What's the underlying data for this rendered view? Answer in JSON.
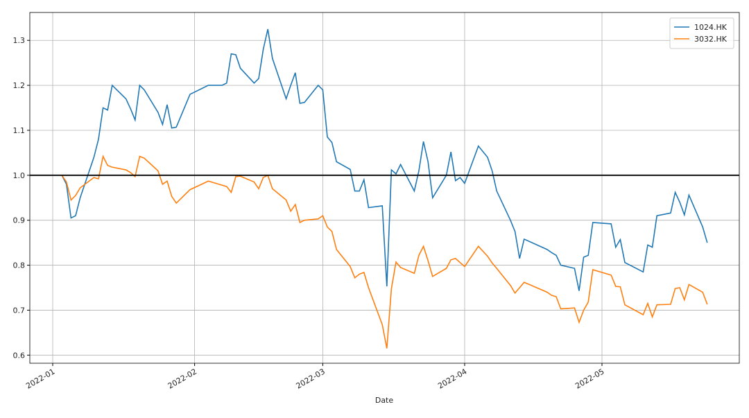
{
  "chart_data": {
    "type": "line",
    "xlabel": "Date",
    "x": [
      "2022-01-03",
      "2022-01-04",
      "2022-01-05",
      "2022-01-06",
      "2022-01-07",
      "2022-01-10",
      "2022-01-11",
      "2022-01-12",
      "2022-01-13",
      "2022-01-14",
      "2022-01-17",
      "2022-01-18",
      "2022-01-19",
      "2022-01-20",
      "2022-01-21",
      "2022-01-24",
      "2022-01-25",
      "2022-01-26",
      "2022-01-27",
      "2022-01-28",
      "2022-01-31",
      "2022-02-04",
      "2022-02-07",
      "2022-02-08",
      "2022-02-09",
      "2022-02-10",
      "2022-02-11",
      "2022-02-14",
      "2022-02-15",
      "2022-02-16",
      "2022-02-17",
      "2022-02-18",
      "2022-02-21",
      "2022-02-22",
      "2022-02-23",
      "2022-02-24",
      "2022-02-25",
      "2022-02-28",
      "2022-03-01",
      "2022-03-02",
      "2022-03-03",
      "2022-03-04",
      "2022-03-07",
      "2022-03-08",
      "2022-03-09",
      "2022-03-10",
      "2022-03-11",
      "2022-03-14",
      "2022-03-15",
      "2022-03-16",
      "2022-03-17",
      "2022-03-18",
      "2022-03-21",
      "2022-03-22",
      "2022-03-23",
      "2022-03-24",
      "2022-03-25",
      "2022-03-28",
      "2022-03-29",
      "2022-03-30",
      "2022-03-31",
      "2022-04-01",
      "2022-04-04",
      "2022-04-06",
      "2022-04-07",
      "2022-04-08",
      "2022-04-11",
      "2022-04-12",
      "2022-04-13",
      "2022-04-14",
      "2022-04-19",
      "2022-04-20",
      "2022-04-21",
      "2022-04-22",
      "2022-04-25",
      "2022-04-26",
      "2022-04-27",
      "2022-04-28",
      "2022-04-29",
      "2022-05-03",
      "2022-05-04",
      "2022-05-05",
      "2022-05-06",
      "2022-05-10",
      "2022-05-11",
      "2022-05-12",
      "2022-05-13",
      "2022-05-16",
      "2022-05-17",
      "2022-05-18",
      "2022-05-19",
      "2022-05-20",
      "2022-05-23",
      "2022-05-24"
    ],
    "series": [
      {
        "name": "1024.HK",
        "color": "#1f77b4",
        "values": [
          1.0,
          0.98,
          0.905,
          0.91,
          0.95,
          1.04,
          1.08,
          1.15,
          1.145,
          1.2,
          1.17,
          1.148,
          1.123,
          1.2,
          1.19,
          1.14,
          1.113,
          1.157,
          1.105,
          1.107,
          1.18,
          1.2,
          1.2,
          1.205,
          1.27,
          1.268,
          1.238,
          1.205,
          1.215,
          1.28,
          1.325,
          1.26,
          1.17,
          1.2,
          1.228,
          1.16,
          1.162,
          1.2,
          1.19,
          1.085,
          1.073,
          1.03,
          1.013,
          0.965,
          0.965,
          0.99,
          0.928,
          0.932,
          0.753,
          1.012,
          1.003,
          1.024,
          0.965,
          1.01,
          1.075,
          1.03,
          0.95,
          1.0,
          1.052,
          0.988,
          0.995,
          0.982,
          1.065,
          1.04,
          1.01,
          0.965,
          0.9,
          0.875,
          0.815,
          0.858,
          0.835,
          0.828,
          0.822,
          0.8,
          0.793,
          0.743,
          0.818,
          0.822,
          0.895,
          0.892,
          0.84,
          0.857,
          0.806,
          0.785,
          0.845,
          0.84,
          0.91,
          0.916,
          0.962,
          0.94,
          0.912,
          0.956,
          0.885,
          0.85
        ]
      },
      {
        "name": "3032.HK",
        "color": "#ff7f0e",
        "values": [
          1.0,
          0.985,
          0.945,
          0.955,
          0.972,
          0.995,
          0.992,
          1.042,
          1.022,
          1.018,
          1.012,
          1.006,
          0.997,
          1.042,
          1.038,
          1.01,
          0.98,
          0.987,
          0.953,
          0.938,
          0.968,
          0.987,
          0.978,
          0.975,
          0.962,
          0.997,
          0.998,
          0.985,
          0.97,
          0.995,
          1.0,
          0.97,
          0.945,
          0.92,
          0.935,
          0.895,
          0.9,
          0.903,
          0.91,
          0.885,
          0.875,
          0.835,
          0.797,
          0.772,
          0.78,
          0.784,
          0.75,
          0.668,
          0.615,
          0.748,
          0.807,
          0.795,
          0.782,
          0.822,
          0.842,
          0.81,
          0.775,
          0.793,
          0.812,
          0.815,
          0.806,
          0.797,
          0.842,
          0.82,
          0.805,
          0.793,
          0.755,
          0.738,
          0.75,
          0.762,
          0.74,
          0.733,
          0.73,
          0.703,
          0.705,
          0.673,
          0.7,
          0.718,
          0.79,
          0.778,
          0.753,
          0.752,
          0.712,
          0.69,
          0.715,
          0.685,
          0.712,
          0.713,
          0.748,
          0.75,
          0.723,
          0.757,
          0.74,
          0.713
        ]
      }
    ],
    "hline": 1.0,
    "xlim": [
      "2021-12-27",
      "2022-05-31"
    ],
    "xticks": [
      {
        "value": "2022-01-01",
        "label": "2022-01"
      },
      {
        "value": "2022-02-01",
        "label": "2022-02"
      },
      {
        "value": "2022-03-01",
        "label": "2022-03"
      },
      {
        "value": "2022-04-01",
        "label": "2022-04"
      },
      {
        "value": "2022-05-01",
        "label": "2022-05"
      }
    ],
    "ylim": [
      0.582,
      1.362
    ],
    "yticks": [
      {
        "value": 0.6,
        "label": "0.6"
      },
      {
        "value": 0.7,
        "label": "0.7"
      },
      {
        "value": 0.8,
        "label": "0.8"
      },
      {
        "value": 0.9,
        "label": "0.9"
      },
      {
        "value": 1.0,
        "label": "1.0"
      },
      {
        "value": 1.1,
        "label": "1.1"
      },
      {
        "value": 1.2,
        "label": "1.2"
      },
      {
        "value": 1.3,
        "label": "1.3"
      }
    ],
    "grid": true,
    "legend": "upper right"
  }
}
